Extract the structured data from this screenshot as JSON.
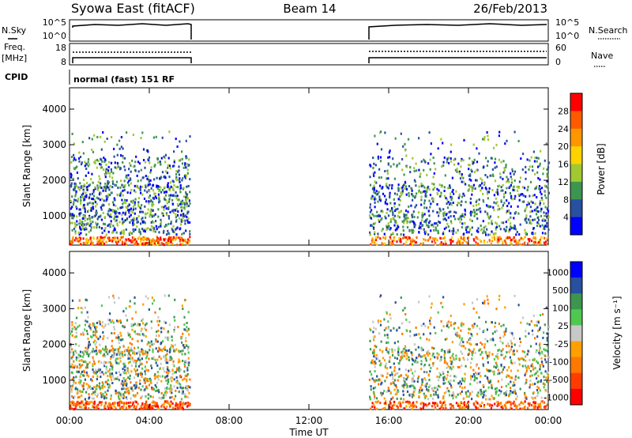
{
  "header": {
    "title": "Syowa East (fitACF)",
    "beam": "Beam 14",
    "date": "26/Feb/2013"
  },
  "top_panels": {
    "nsky_label": "N.Sky",
    "nsearch_label": "N.Search",
    "nsky_ticks": [
      "10^5",
      "10^0"
    ],
    "nsearch_ticks": [
      "10^5",
      "10^0"
    ],
    "freq_label_1": "Freq.",
    "freq_label_2": "[MHz]",
    "freq_ticks": [
      "18",
      "8"
    ],
    "nave_label": "Nave",
    "nave_ticks": [
      "60",
      "0"
    ],
    "cpid_label": "CPID",
    "cpid_text": "normal (fast) 151 RF"
  },
  "chart_data": [
    {
      "type": "heatmap",
      "title": "",
      "xlabel": "Time UT",
      "ylabel": "Slant Range [km]",
      "x_ticks": [
        "00:00",
        "04:00",
        "08:00",
        "12:00",
        "16:00",
        "20:00",
        "00:00"
      ],
      "xlim": [
        0,
        24
      ],
      "ylim": [
        180,
        4600
      ],
      "y_ticks": [
        1000,
        2000,
        3000,
        4000
      ],
      "colorbar_label": "Power [dB]",
      "colorbar_ticks": [
        "28",
        "24",
        "20",
        "16",
        "12",
        "8",
        "4"
      ],
      "colorbar_colors": [
        "#ff0000",
        "#ff5a00",
        "#ff9600",
        "#ffd200",
        "#a0c832",
        "#3c9650",
        "#2850a0",
        "#0000ff"
      ],
      "data_intervals_ut": [
        [
          0,
          6
        ],
        [
          15,
          24
        ]
      ]
    },
    {
      "type": "heatmap",
      "title": "",
      "xlabel": "Time UT",
      "ylabel": "Slant Range [km]",
      "x_ticks": [
        "00:00",
        "04:00",
        "08:00",
        "12:00",
        "16:00",
        "20:00",
        "00:00"
      ],
      "xlim": [
        0,
        24
      ],
      "ylim": [
        180,
        4600
      ],
      "y_ticks": [
        1000,
        2000,
        3000,
        4000
      ],
      "colorbar_label": "Velocity [m s⁻¹]",
      "colorbar_ticks": [
        "1000",
        "500",
        "100",
        "25",
        "-25",
        "-100",
        "-500",
        "-1000"
      ],
      "colorbar_colors": [
        "#0000ff",
        "#2850a0",
        "#3c9650",
        "#50c850",
        "#c8c8c8",
        "#ffa000",
        "#ff7800",
        "#ff3c00",
        "#ff0000"
      ],
      "data_intervals_ut": [
        [
          0,
          6
        ],
        [
          15,
          24
        ]
      ]
    }
  ]
}
